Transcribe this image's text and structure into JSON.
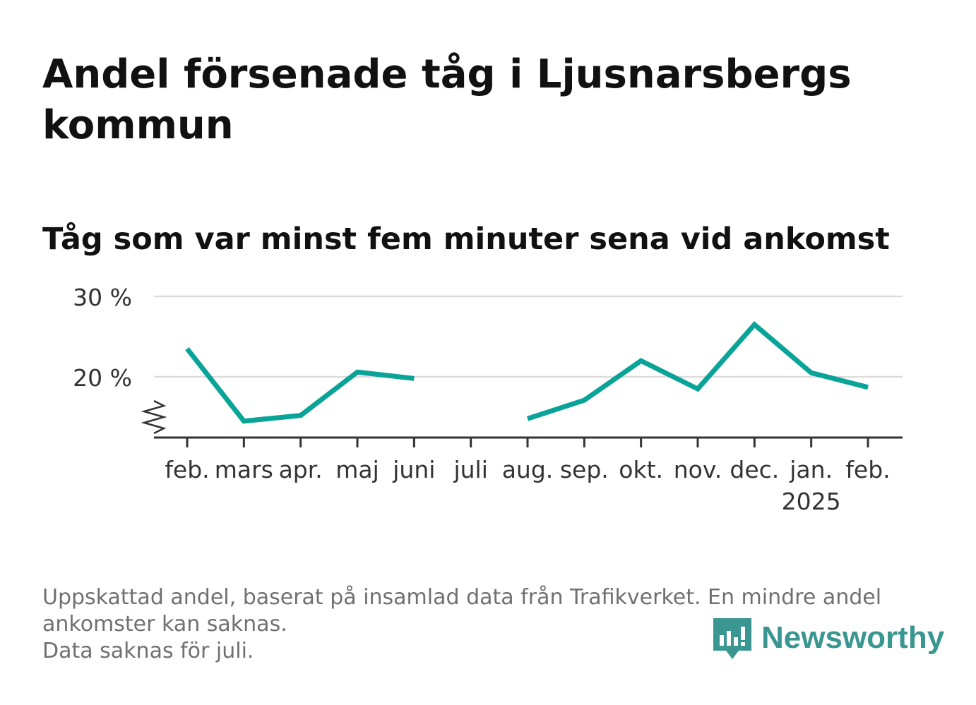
{
  "header": {
    "title": "Andel försenade tåg i Ljusnarsbergs kommun",
    "subtitle": "Tåg som var minst fem minuter sena vid ankomst"
  },
  "chart_data": {
    "type": "line",
    "categories": [
      "feb.",
      "mars",
      "apr.",
      "maj",
      "juni",
      "juli",
      "aug.",
      "sep.",
      "okt.",
      "nov.",
      "dec.",
      "jan.",
      "feb."
    ],
    "year_labels": [
      "",
      "",
      "",
      "",
      "",
      "",
      "",
      "",
      "",
      "",
      "",
      "2025",
      ""
    ],
    "series": [
      {
        "values": [
          23.5,
          14.5,
          15.2,
          20.6,
          19.8,
          null,
          14.8,
          17.1,
          22.0,
          18.5,
          26.5,
          20.5,
          18.7
        ],
        "color": "#0aa398"
      }
    ],
    "ylim": [
      13,
      30
    ],
    "yticks": [
      20,
      30
    ],
    "ytick_labels": [
      "20 %",
      "30 %"
    ],
    "axis_break": true,
    "grid": true,
    "legend": "none"
  },
  "footer": {
    "notes": [
      "Uppskattad andel, baserat på insamlad data från Trafikverket. En mindre andel",
      "ankomster kan saknas.",
      "Data saknas för juli."
    ],
    "brand": "Newsworthy",
    "brand_color": "#3a9690"
  }
}
